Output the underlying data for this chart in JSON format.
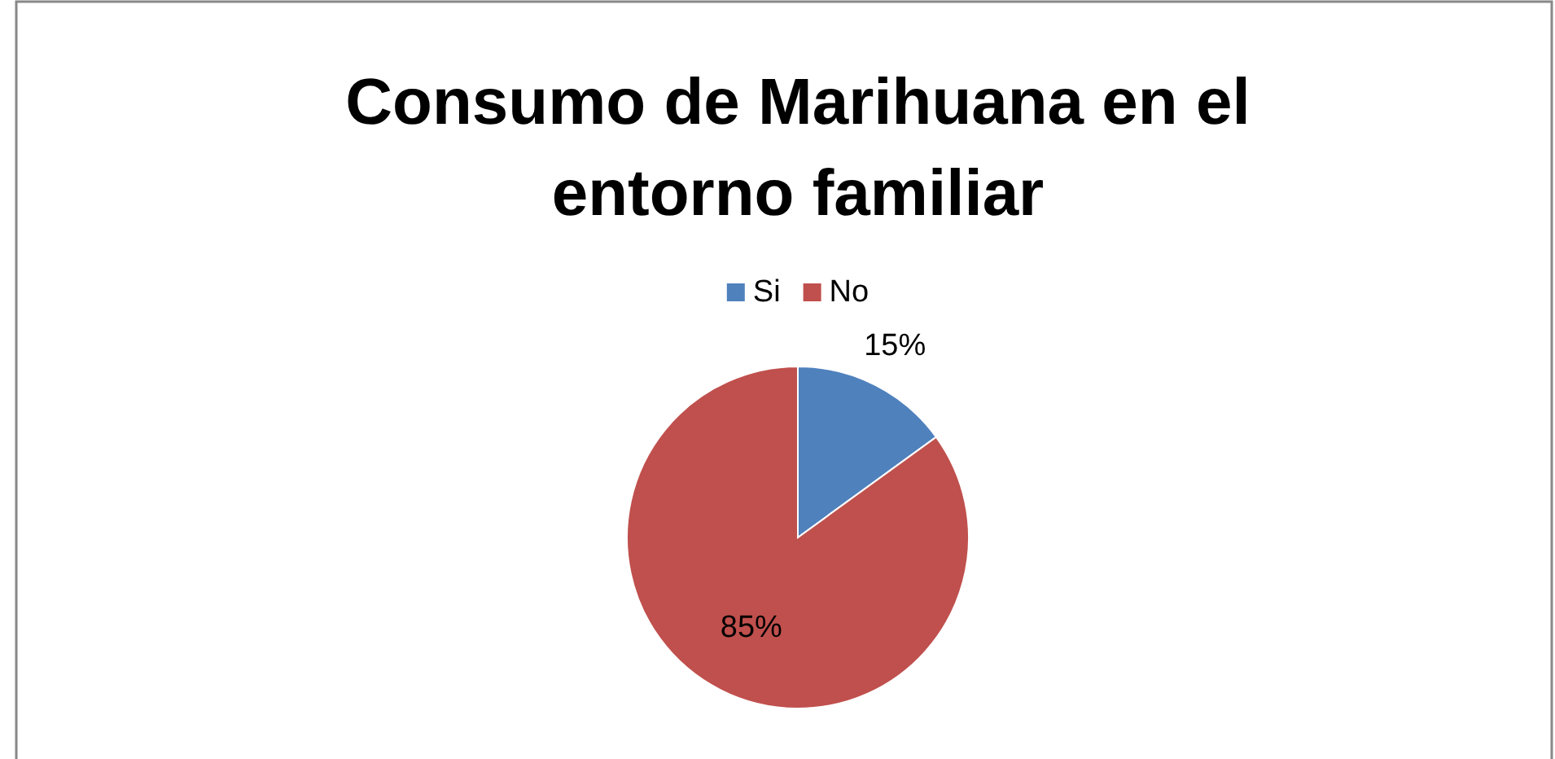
{
  "chart_data": {
    "type": "pie",
    "title": "Consumo de Marihuana en el entorno familiar",
    "categories": [
      "Si",
      "No"
    ],
    "values": [
      15,
      85
    ],
    "colors": [
      "#4f81bd",
      "#c0504d"
    ],
    "value_labels": [
      "15%",
      "85%"
    ],
    "legend": "top"
  }
}
